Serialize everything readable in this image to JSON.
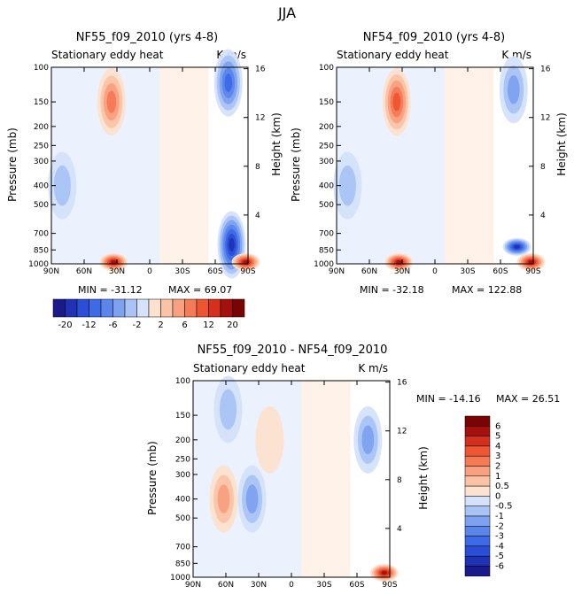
{
  "figure_title": "JJA",
  "chart_data": [
    {
      "type": "heatmap",
      "title": "NF55_f09_2010 (yrs 4-8)",
      "subtitle": "Stationary eddy heat",
      "units": "K m/s",
      "ylabel_left": "Pressure (mb)",
      "ylabel_right": "Height (km)",
      "x_ticks": [
        "90N",
        "60N",
        "30N",
        "0",
        "30S",
        "60S",
        "90S"
      ],
      "pressure_ticks": [
        "100",
        "150",
        "200",
        "250",
        "300",
        "400",
        "500",
        "700",
        "850",
        "1000"
      ],
      "height_ticks": [
        "16",
        "12",
        "8",
        "4"
      ],
      "min_label": "MIN = -31.12",
      "max_label": "MAX =  69.07",
      "features": [
        {
          "lat": 35,
          "p": 150,
          "value": 10
        },
        {
          "lat": 33,
          "p": 1000,
          "value": 20
        },
        {
          "lat": -72,
          "p": 120,
          "value": -12
        },
        {
          "lat": -75,
          "p": 800,
          "value": -20
        },
        {
          "lat": -88,
          "p": 980,
          "value": 20
        },
        {
          "lat": 80,
          "p": 400,
          "value": -4
        }
      ]
    },
    {
      "type": "heatmap",
      "title": "NF54_f09_2010 (yrs 4-8)",
      "subtitle": "Stationary eddy heat",
      "units": "K m/s",
      "ylabel_left": "Pressure (mb)",
      "ylabel_right": "Height (km)",
      "x_ticks": [
        "90N",
        "60N",
        "30N",
        "0",
        "30S",
        "60S",
        "90S"
      ],
      "pressure_ticks": [
        "100",
        "150",
        "200",
        "250",
        "300",
        "400",
        "500",
        "700",
        "850",
        "1000"
      ],
      "height_ticks": [
        "16",
        "12",
        "8",
        "4"
      ],
      "min_label": "MIN = -32.18",
      "max_label": "MAX = 122.88",
      "features": [
        {
          "lat": 35,
          "p": 150,
          "value": 12
        },
        {
          "lat": 33,
          "p": 1000,
          "value": 20
        },
        {
          "lat": -72,
          "p": 130,
          "value": -6
        },
        {
          "lat": -75,
          "p": 820,
          "value": -20
        },
        {
          "lat": -88,
          "p": 980,
          "value": 20
        },
        {
          "lat": 80,
          "p": 400,
          "value": -4
        }
      ]
    },
    {
      "type": "heatmap",
      "title": "NF55_f09_2010 - NF54_f09_2010",
      "subtitle": "Stationary eddy heat",
      "units": "K m/s",
      "ylabel_left": "Pressure (mb)",
      "ylabel_right": "Height (km)",
      "x_ticks": [
        "90N",
        "60N",
        "30N",
        "0",
        "30S",
        "60S",
        "90S"
      ],
      "pressure_ticks": [
        "100",
        "150",
        "200",
        "250",
        "300",
        "400",
        "500",
        "700",
        "850",
        "1000"
      ],
      "height_ticks": [
        "16",
        "12",
        "8",
        "4"
      ],
      "min_label": "MIN = -14.16",
      "max_label": "MAX =  26.51",
      "features": [
        {
          "lat": 62,
          "p": 400,
          "value": 2.5
        },
        {
          "lat": 36,
          "p": 400,
          "value": -2
        },
        {
          "lat": 58,
          "p": 140,
          "value": -1
        },
        {
          "lat": -70,
          "p": 200,
          "value": -2.5
        },
        {
          "lat": -85,
          "p": 950,
          "value": 6
        },
        {
          "lat": 20,
          "p": 200,
          "value": 0.5
        }
      ]
    }
  ],
  "colorbar_horizontal": {
    "labels": [
      "-20",
      "-12",
      "-6",
      "-2",
      "2",
      "6",
      "12",
      "20"
    ],
    "colors": [
      "#1a1a8c",
      "#1f32b4",
      "#2a4fd6",
      "#3d6ae6",
      "#5a86ec",
      "#7ea2f0",
      "#a9c3f5",
      "#d4e2fa",
      "#fde2cf",
      "#fbc3a6",
      "#f8a07f",
      "#f57a56",
      "#ed5533",
      "#d4301d",
      "#a3100e",
      "#7a0404"
    ]
  },
  "colorbar_vertical": {
    "labels": [
      "6",
      "5",
      "4",
      "3",
      "2",
      "1",
      "0.5",
      "0",
      "-0.5",
      "-1",
      "-2",
      "-3",
      "-4",
      "-5",
      "-6"
    ],
    "colors": [
      "#7a0404",
      "#a3100e",
      "#d4301d",
      "#ed5533",
      "#f57a56",
      "#f8a07f",
      "#fbc3a6",
      "#fde2cf",
      "#d4e2fa",
      "#a9c3f5",
      "#7ea2f0",
      "#5a86ec",
      "#3d6ae6",
      "#2a4fd6",
      "#1f32b4",
      "#1a1a8c"
    ]
  }
}
